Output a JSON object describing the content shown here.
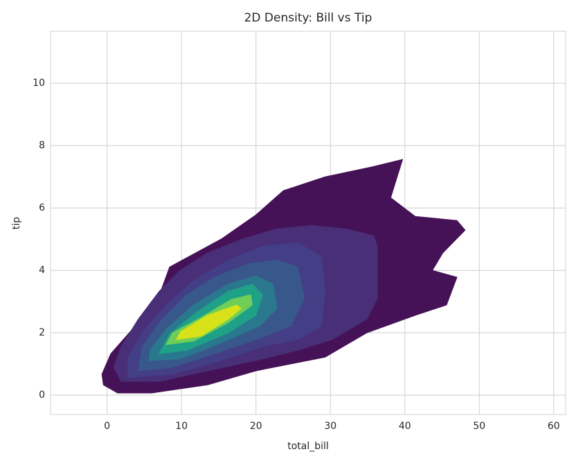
{
  "chart_data": {
    "type": "contour",
    "title": "2D Density: Bill vs Tip",
    "x_label": "total_bill",
    "y_label": "tip",
    "xlim": [
      -7.6,
      61.6
    ],
    "ylim": [
      -0.62,
      11.67
    ],
    "xticks": [
      0,
      10,
      20,
      30,
      40,
      50,
      60
    ],
    "yticks": [
      0,
      2,
      4,
      6,
      8,
      10
    ],
    "grid": true,
    "levels": [
      {
        "color": "#461257",
        "x": [
          -0.5,
          1.4,
          6.0,
          13.5,
          20,
          29.3,
          34.9,
          41.4,
          45.6,
          47,
          43.7,
          45.1,
          48.1,
          47,
          41.4,
          38.1,
          39.7,
          35.8,
          29.3,
          23.7,
          20,
          15.3,
          8.4,
          7.2,
          4.2,
          0.5,
          -0.7
        ],
        "y": [
          0.33,
          0.07,
          0.07,
          0.33,
          0.78,
          1.22,
          2.0,
          2.56,
          2.89,
          3.78,
          4.0,
          4.56,
          5.29,
          5.6,
          5.73,
          6.33,
          7.56,
          7.33,
          7.0,
          6.56,
          5.78,
          5.0,
          4.11,
          3.33,
          2.33,
          1.33,
          0.67
        ]
      },
      {
        "color": "#482f78",
        "x": [
          1.9,
          7,
          13.5,
          20,
          25.6,
          30.2,
          34.9,
          36.3,
          36.3,
          36.3,
          35.8,
          32.1,
          27.4,
          22.8,
          18.1,
          13.5,
          9.8,
          7,
          4.2,
          1.9,
          0.9
        ],
        "y": [
          0.44,
          0.44,
          0.78,
          1.11,
          1.44,
          1.78,
          2.44,
          3.11,
          3.89,
          4.78,
          5.11,
          5.33,
          5.44,
          5.33,
          5.0,
          4.56,
          4.0,
          3.33,
          2.44,
          1.56,
          0.89
        ]
      },
      {
        "color": "#433e85",
        "x": [
          2.8,
          8.8,
          15.3,
          20.9,
          25.6,
          28.8,
          29.3,
          28.8,
          25.6,
          20.9,
          16.3,
          11.6,
          7.9,
          4.7,
          2.8
        ],
        "y": [
          0.56,
          0.67,
          1.11,
          1.56,
          1.78,
          2.22,
          3.33,
          4.44,
          4.89,
          4.78,
          4.33,
          3.67,
          2.89,
          2.0,
          1.22
        ]
      },
      {
        "color": "#38588c",
        "x": [
          4.2,
          8.8,
          14.4,
          20,
          24.7,
          26.5,
          25.6,
          22.8,
          19.1,
          14.4,
          10.7,
          7.4,
          4.7
        ],
        "y": [
          0.78,
          0.89,
          1.33,
          1.78,
          2.22,
          3.11,
          4.11,
          4.33,
          4.22,
          3.78,
          3.22,
          2.44,
          1.56
        ]
      },
      {
        "color": "#2a788e",
        "x": [
          5.6,
          9.8,
          15.3,
          20.5,
          22.8,
          22.3,
          20,
          16.3,
          11.6,
          7.9,
          5.8
        ],
        "y": [
          1.11,
          1.16,
          1.67,
          2.22,
          2.78,
          3.56,
          3.82,
          3.56,
          2.89,
          2.11,
          1.44
        ]
      },
      {
        "color": "#1fa187",
        "x": [
          7,
          10.7,
          16.3,
          20,
          20.9,
          19.5,
          16.3,
          12.1,
          8.4
        ],
        "y": [
          1.33,
          1.44,
          2.0,
          2.56,
          3.22,
          3.56,
          3.33,
          2.67,
          1.96
        ]
      },
      {
        "color": "#6ece58",
        "x": [
          7.9,
          11.6,
          16.3,
          19.5,
          19.3,
          16.7,
          12.6,
          8.8
        ],
        "y": [
          1.62,
          1.73,
          2.33,
          2.89,
          3.22,
          3.07,
          2.49,
          2.0
        ]
      },
      {
        "color": "#d8e219",
        "x": [
          9.3,
          12.6,
          16.3,
          18,
          17.4,
          13.5,
          9.9
        ],
        "y": [
          1.78,
          1.89,
          2.44,
          2.78,
          2.89,
          2.56,
          2.04
        ]
      }
    ]
  }
}
